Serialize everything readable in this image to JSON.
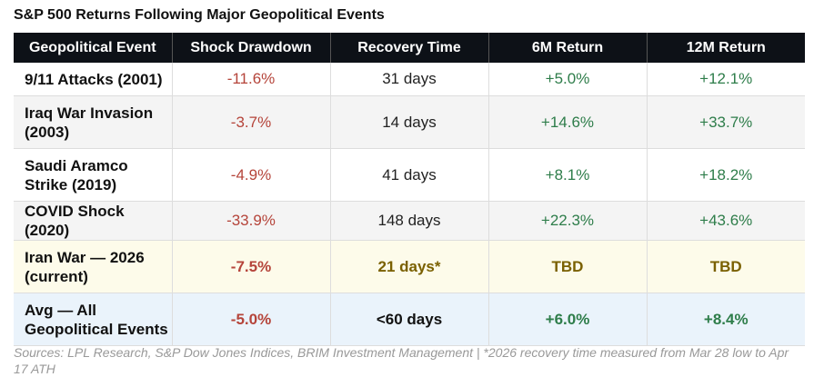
{
  "header": {
    "title": "S&P 500 Returns Following Major Geopolitical Events"
  },
  "table": {
    "columns": [
      "Geopolitical Event",
      "Shock Drawdown",
      "Recovery Time",
      "6M Return",
      "12M Return"
    ],
    "rows": [
      [
        "9/11 Attacks (2001)",
        "-11.6%",
        "31 days",
        "+5.0%",
        "+12.1%"
      ],
      [
        "Iraq War Invasion (2003)",
        "-3.7%",
        "14 days",
        "+14.6%",
        "+33.7%"
      ],
      [
        "Saudi Aramco Strike (2019)",
        "-4.9%",
        "41 days",
        "+8.1%",
        "+18.2%"
      ],
      [
        "COVID Shock (2020)",
        "-33.9%",
        "148 days",
        "+22.3%",
        "+43.6%"
      ],
      [
        "Iran War — 2026 (current)",
        "-7.5%",
        "21 days*",
        "TBD",
        "TBD"
      ],
      [
        "Avg — All Geopolitical Events",
        "-5.0%",
        "<60 days",
        "+6.0%",
        "+8.4%"
      ]
    ]
  },
  "footnote": "Sources: LPL Research, S&P Dow Jones Indices, BRIM Investment Management | *2026 recovery time measured from Mar 28 low to Apr 17 ATH"
}
